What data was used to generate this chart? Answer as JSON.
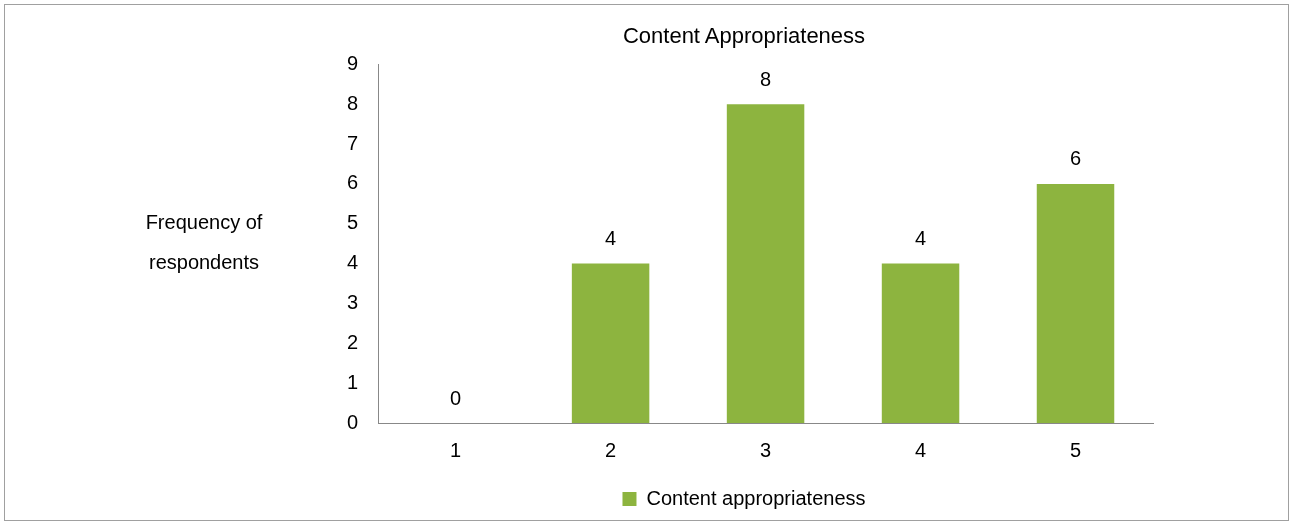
{
  "chart_data": {
    "type": "bar",
    "title": "Content Appropriateness",
    "ylabel": "Frequency of respondents",
    "categories": [
      "1",
      "2",
      "3",
      "4",
      "5"
    ],
    "series": [
      {
        "name": "Content appropriateness",
        "color": "#8db43f",
        "values": [
          0,
          4,
          8,
          4,
          6
        ]
      }
    ],
    "ylim": [
      0,
      9
    ],
    "yticks": [
      0,
      1,
      2,
      3,
      4,
      5,
      6,
      7,
      8,
      9
    ],
    "grid": false,
    "legend": "bottom",
    "data_labels": true
  }
}
